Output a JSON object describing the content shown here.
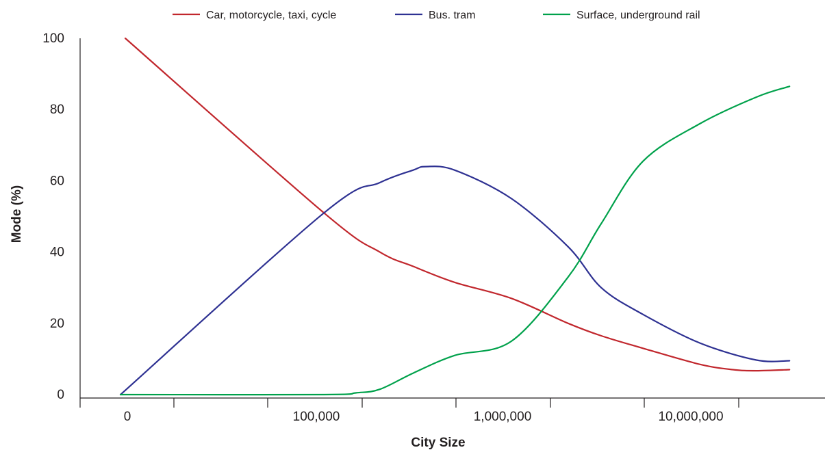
{
  "chart_data": {
    "type": "line",
    "title": "",
    "xlabel": "City Size",
    "ylabel": "Mode (%)",
    "x_tick_labels": [
      "0",
      "100,000",
      "1,000,000",
      "10,000,000"
    ],
    "y_ticks": [
      0,
      20,
      40,
      60,
      80,
      100
    ],
    "ylim": [
      0,
      100
    ],
    "grid": false,
    "legend_position": "top",
    "series": [
      {
        "name": "Car, motorcycle, taxi, cycle",
        "color": "#c1272d",
        "points": [
          {
            "x": 0,
            "y": 100
          },
          {
            "x": 100000,
            "y": 51
          },
          {
            "x": 200000,
            "y": 40
          },
          {
            "x": 300000,
            "y": 36
          },
          {
            "x": 500000,
            "y": 31.5
          },
          {
            "x": 1000000,
            "y": 27
          },
          {
            "x": 2000000,
            "y": 20
          },
          {
            "x": 3000000,
            "y": 16.5
          },
          {
            "x": 5000000,
            "y": 13
          },
          {
            "x": 10000000,
            "y": 8.5
          },
          {
            "x": 15000000,
            "y": 7
          },
          {
            "x": 20000000,
            "y": 6.7
          },
          {
            "x": 30000000,
            "y": 7
          }
        ]
      },
      {
        "name": "Bus. tram",
        "color": "#2e3192",
        "points": [
          {
            "x": 0,
            "y": 0
          },
          {
            "x": 100000,
            "y": 51
          },
          {
            "x": 200000,
            "y": 59.5
          },
          {
            "x": 300000,
            "y": 63
          },
          {
            "x": 350000,
            "y": 64
          },
          {
            "x": 500000,
            "y": 63
          },
          {
            "x": 1000000,
            "y": 55
          },
          {
            "x": 2000000,
            "y": 41.5
          },
          {
            "x": 3000000,
            "y": 30
          },
          {
            "x": 5000000,
            "y": 22.5
          },
          {
            "x": 10000000,
            "y": 14.5
          },
          {
            "x": 20000000,
            "y": 9.7
          },
          {
            "x": 30000000,
            "y": 9.5
          }
        ]
      },
      {
        "name": "Surface, underground rail",
        "color": "#00a14b",
        "points": [
          {
            "x": 0,
            "y": 0
          },
          {
            "x": 100000,
            "y": 0
          },
          {
            "x": 150000,
            "y": 0.5
          },
          {
            "x": 200000,
            "y": 1.5
          },
          {
            "x": 300000,
            "y": 6
          },
          {
            "x": 500000,
            "y": 11
          },
          {
            "x": 1000000,
            "y": 15
          },
          {
            "x": 2000000,
            "y": 33
          },
          {
            "x": 3000000,
            "y": 48
          },
          {
            "x": 5000000,
            "y": 65.5
          },
          {
            "x": 10000000,
            "y": 76
          },
          {
            "x": 20000000,
            "y": 83.5
          },
          {
            "x": 30000000,
            "y": 86.5
          }
        ]
      }
    ]
  }
}
